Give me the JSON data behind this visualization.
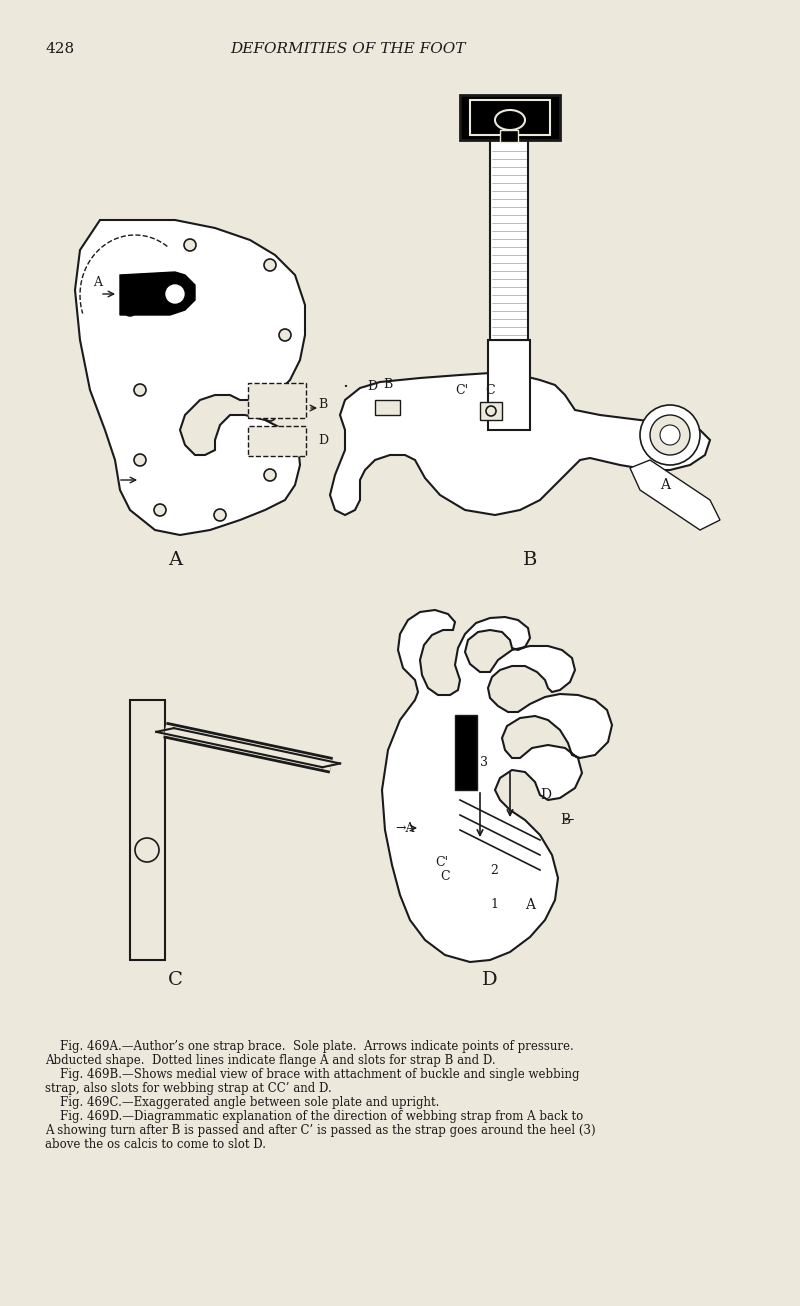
{
  "bg_color": "#EDE8DC",
  "page_number": "428",
  "page_title": "DEFORMITIES OF THE FOOT",
  "fig_label_A": "A",
  "fig_label_B": "B",
  "fig_label_C": "C",
  "fig_label_D": "D",
  "caption_A": "Fig. 469A.—Author’s one strap brace.  Sole plate.  Arrows indicate points of pressure.",
  "caption_A2": "Abducted shape.  Dotted lines indicate flange A and slots for strap B and D.",
  "caption_B": "Fig. 469B.—Shows medial view of brace with attachment of buckle and single webbing",
  "caption_B2": "strap, also slots for webbing strap at CC’ and D.",
  "caption_C": "Fig. 469C.—Exaggerated angle between sole plate and upright.",
  "caption_D": "Fig. 469D.—Diagrammatic explanation of the direction of webbing strap from A back to",
  "caption_D2": "A showing turn after B is passed and after C’ is passed as the strap goes around the heel (3)",
  "caption_D3": "above the os calcis to come to slot D.",
  "text_color": "#1a1a1a",
  "line_color": "#1a1a1a"
}
